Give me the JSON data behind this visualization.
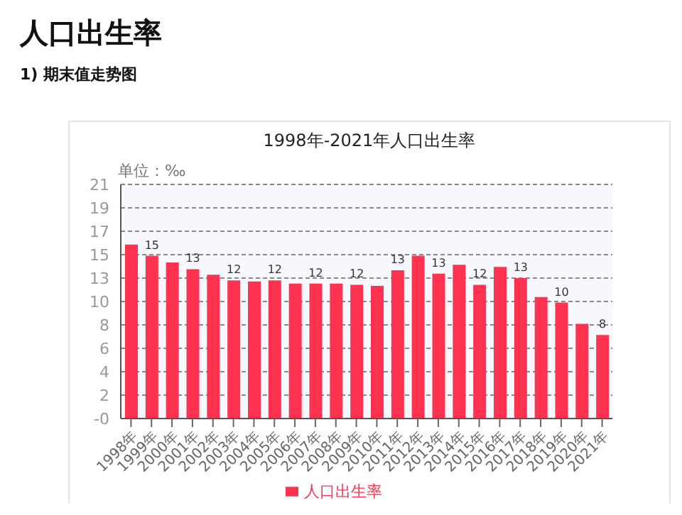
{
  "chart_data": {
    "type": "bar",
    "title": "1998年-2021年人口出生率",
    "ylabel": "单位：‰",
    "annotations": [
      "人口出生率",
      "1) 期末值走势图"
    ],
    "categories": [
      "1998年",
      "1999年",
      "2000年",
      "2001年",
      "2002年",
      "2003年",
      "2004年",
      "2005年",
      "2006年",
      "2007年",
      "2008年",
      "2009年",
      "2010年",
      "2011年",
      "2012年",
      "2013年",
      "2014年",
      "2015年",
      "2016年",
      "2017年",
      "2018年",
      "2019年",
      "2020年",
      "2021年"
    ],
    "series": [
      {
        "name": "人口出生率",
        "color": "#ff334f",
        "values": [
          15.6,
          14.6,
          14.0,
          13.4,
          12.9,
          12.4,
          12.3,
          12.4,
          12.1,
          12.1,
          12.1,
          12.0,
          11.9,
          13.3,
          14.6,
          13.0,
          13.8,
          12.0,
          13.6,
          12.6,
          10.9,
          10.4,
          8.5,
          7.5
        ],
        "value_labels": [
          null,
          "15",
          null,
          "13",
          null,
          "12",
          null,
          "12",
          null,
          "12",
          null,
          "12",
          null,
          "13",
          null,
          "13",
          null,
          "12",
          null,
          "13",
          null,
          "10",
          null,
          "8"
        ]
      }
    ],
    "ylim": [
      0,
      21
    ],
    "yticks": [
      {
        "value": 0,
        "label": "-0"
      },
      {
        "value": 2.1,
        "label": "2"
      },
      {
        "value": 4.2,
        "label": "4"
      },
      {
        "value": 6.3,
        "label": "6"
      },
      {
        "value": 8.4,
        "label": "8"
      },
      {
        "value": 10.5,
        "label": "10"
      },
      {
        "value": 12.6,
        "label": "13"
      },
      {
        "value": 14.7,
        "label": "15"
      },
      {
        "value": 16.8,
        "label": "17"
      },
      {
        "value": 18.9,
        "label": "19"
      },
      21
    ],
    "grid": "y",
    "legend": "bottom"
  }
}
